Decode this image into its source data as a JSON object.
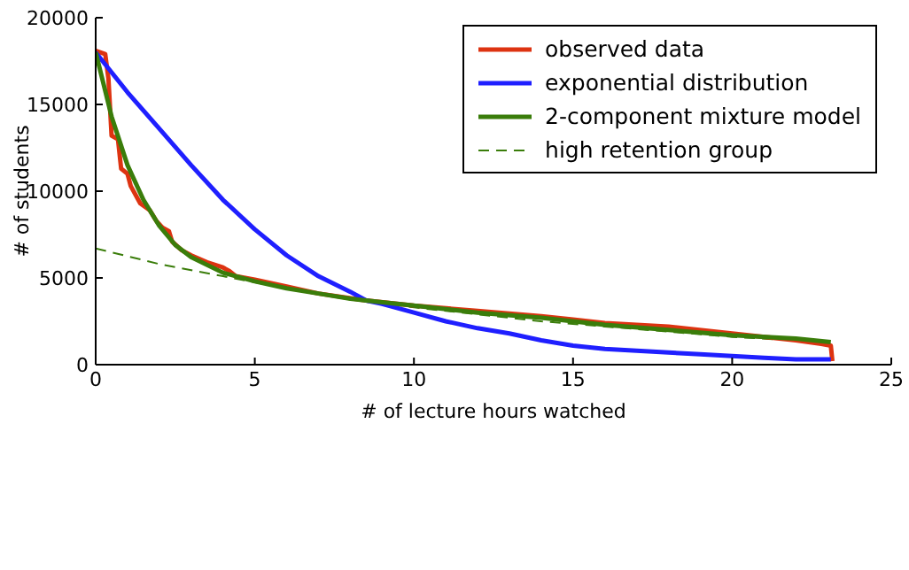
{
  "chart_data": {
    "type": "line",
    "xlabel": "# of lecture hours watched",
    "ylabel": "# of students",
    "xlim": [
      0,
      25
    ],
    "xticks": [
      0,
      5,
      10,
      15,
      20,
      25
    ],
    "ylim": [
      0,
      20000
    ],
    "yticks": [
      0,
      5000,
      10000,
      15000,
      20000
    ],
    "legend": "top right",
    "marker": "none",
    "series": [
      {
        "name": "high retention group",
        "color": "#3a7d0a",
        "line_style": "dashed",
        "x": [
          0,
          2,
          4,
          6,
          8,
          10,
          12,
          14,
          16,
          18,
          20,
          22,
          23.1
        ],
        "values": [
          6700,
          5800,
          5100,
          4400,
          3800,
          3300,
          2900,
          2500,
          2200,
          1900,
          1600,
          1400,
          1300
        ]
      },
      {
        "name": "observed data",
        "color": "#dd3311",
        "line_style": "solid",
        "x": [
          0,
          0.3,
          0.4,
          0.5,
          0.7,
          0.8,
          1.0,
          1.1,
          1.4,
          1.7,
          1.9,
          2.1,
          2.3,
          2.4,
          2.7,
          3,
          3.5,
          4,
          4.2,
          4.4,
          5,
          6,
          7,
          8.5,
          10,
          12,
          14,
          15,
          16,
          18,
          20,
          22,
          22.8,
          23.1,
          23.15
        ],
        "values": [
          18100,
          17900,
          16500,
          13200,
          13000,
          11300,
          11000,
          10300,
          9300,
          8900,
          8300,
          7900,
          7700,
          7100,
          6600,
          6300,
          5900,
          5600,
          5400,
          5100,
          4900,
          4500,
          4100,
          3700,
          3400,
          3100,
          2800,
          2600,
          2400,
          2200,
          1800,
          1400,
          1200,
          1100,
          200
        ]
      },
      {
        "name": "exponential distribution",
        "color": "#1f1fff",
        "line_style": "solid",
        "x": [
          0,
          1,
          2,
          3,
          4,
          5,
          6,
          7,
          8,
          8.5,
          9,
          10,
          11,
          12,
          13,
          14,
          15,
          16,
          17,
          18,
          19,
          20,
          21,
          22,
          23.1
        ],
        "values": [
          18000,
          15700,
          13600,
          11500,
          9500,
          7800,
          6300,
          5100,
          4200,
          3700,
          3500,
          3000,
          2500,
          2100,
          1800,
          1400,
          1100,
          900,
          800,
          700,
          600,
          500,
          400,
          300,
          300
        ]
      },
      {
        "name": "2-component mixture model",
        "color": "#3a7d0a",
        "line_style": "solid",
        "x": [
          0,
          0.5,
          1,
          1.5,
          2,
          2.5,
          3,
          4,
          5,
          6,
          7,
          8,
          9,
          10,
          12,
          14,
          16,
          18,
          20,
          22,
          23.1
        ],
        "values": [
          18000,
          14300,
          11500,
          9500,
          8000,
          6900,
          6200,
          5300,
          4800,
          4400,
          4100,
          3800,
          3600,
          3400,
          3000,
          2700,
          2300,
          2000,
          1700,
          1500,
          1300
        ]
      }
    ]
  }
}
